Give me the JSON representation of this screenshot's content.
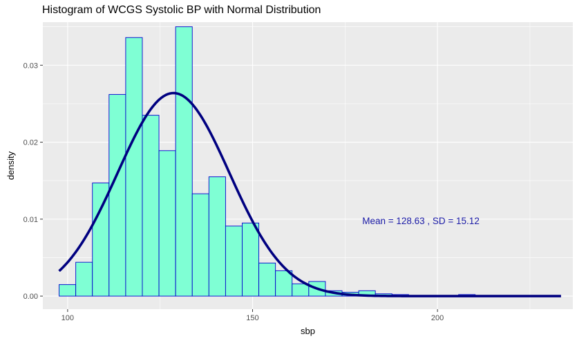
{
  "chart_data": {
    "type": "bar",
    "title": "Histogram of WCGS Systolic BP with Normal Distribution",
    "xlabel": "sbp",
    "ylabel": "density",
    "xlim": [
      93.3,
      236.6
    ],
    "ylim": [
      -0.0017,
      0.0356
    ],
    "x_ticks": [
      100,
      150,
      200
    ],
    "y_ticks": [
      0.0,
      0.01,
      0.02,
      0.03
    ],
    "y_tick_labels": [
      "0.00",
      "0.01",
      "0.02",
      "0.03"
    ],
    "grid": true,
    "bin_width": 4.5,
    "bins": [
      {
        "x0": 97.7,
        "x1": 102.2,
        "density": 0.0015
      },
      {
        "x0": 102.2,
        "x1": 106.7,
        "density": 0.0044
      },
      {
        "x0": 106.7,
        "x1": 111.2,
        "density": 0.0147
      },
      {
        "x0": 111.2,
        "x1": 115.7,
        "density": 0.0262
      },
      {
        "x0": 115.7,
        "x1": 120.2,
        "density": 0.0336
      },
      {
        "x0": 120.2,
        "x1": 124.7,
        "density": 0.0235
      },
      {
        "x0": 124.7,
        "x1": 129.2,
        "density": 0.0189
      },
      {
        "x0": 129.2,
        "x1": 133.7,
        "density": 0.035
      },
      {
        "x0": 133.7,
        "x1": 138.2,
        "density": 0.0133
      },
      {
        "x0": 138.2,
        "x1": 142.7,
        "density": 0.0155
      },
      {
        "x0": 142.7,
        "x1": 147.2,
        "density": 0.0091
      },
      {
        "x0": 147.2,
        "x1": 151.7,
        "density": 0.0095
      },
      {
        "x0": 151.7,
        "x1": 156.2,
        "density": 0.0043
      },
      {
        "x0": 156.2,
        "x1": 160.7,
        "density": 0.0033
      },
      {
        "x0": 160.7,
        "x1": 165.2,
        "density": 0.0016
      },
      {
        "x0": 165.2,
        "x1": 169.7,
        "density": 0.0019
      },
      {
        "x0": 169.7,
        "x1": 174.2,
        "density": 0.0007
      },
      {
        "x0": 174.2,
        "x1": 178.7,
        "density": 0.0005
      },
      {
        "x0": 178.7,
        "x1": 183.2,
        "density": 0.0007
      },
      {
        "x0": 183.2,
        "x1": 187.7,
        "density": 0.0003
      },
      {
        "x0": 187.7,
        "x1": 192.2,
        "density": 0.0002
      },
      {
        "x0": 192.2,
        "x1": 196.7,
        "density": 0.0001
      },
      {
        "x0": 196.7,
        "x1": 201.2,
        "density": 0.0001
      },
      {
        "x0": 201.2,
        "x1": 205.7,
        "density": 0.0001
      },
      {
        "x0": 205.7,
        "x1": 210.2,
        "density": 0.0002
      },
      {
        "x0": 210.2,
        "x1": 214.7,
        "density": 0.0001
      },
      {
        "x0": 214.7,
        "x1": 219.2,
        "density": 0.0001
      },
      {
        "x0": 219.2,
        "x1": 223.7,
        "density": 0.0001
      },
      {
        "x0": 223.7,
        "x1": 228.2,
        "density": 0.0001
      }
    ],
    "normal_curve": {
      "mean": 128.63,
      "sd": 15.12,
      "x_range": [
        97.7,
        233.4
      ]
    },
    "annotation": {
      "text": "Mean =  128.63 , SD =  15.12",
      "x": 195.5,
      "y": 0.0098
    },
    "colors": {
      "panel_bg": "#ebebeb",
      "grid": "#ffffff",
      "bar_fill": "#7fffd4",
      "bar_stroke": "#0000cd",
      "curve": "#000080",
      "annotation": "#1a1aa6"
    }
  }
}
